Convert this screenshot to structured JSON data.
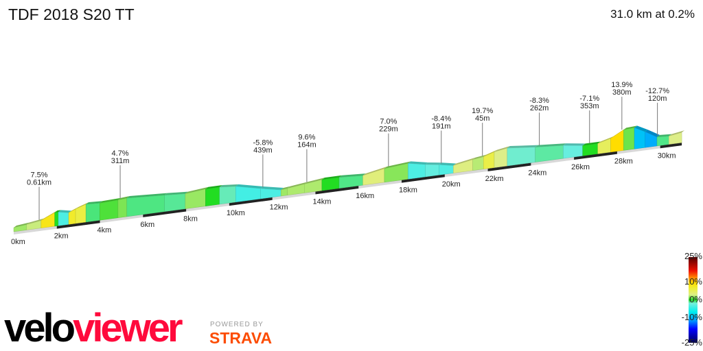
{
  "header": {
    "title": "TDF 2018 S20 TT",
    "summary": "31.0 km at 0.2%"
  },
  "chart_data": {
    "type": "area",
    "title": "TDF 2018 S20 TT",
    "xlabel": "",
    "ylabel": "",
    "x_unit": "km",
    "xlim": [
      0,
      31
    ],
    "x_ticks": [
      "0km",
      "2km",
      "4km",
      "6km",
      "8km",
      "10km",
      "12km",
      "14km",
      "16km",
      "18km",
      "20km",
      "22km",
      "24km",
      "26km",
      "28km",
      "30km"
    ],
    "profile": [
      [
        0,
        36
      ],
      [
        0.6,
        48
      ],
      [
        1.27,
        66
      ],
      [
        1.9,
        120
      ],
      [
        2.07,
        120
      ],
      [
        2.55,
        102
      ],
      [
        2.87,
        126
      ],
      [
        3.35,
        156
      ],
      [
        3.99,
        150
      ],
      [
        4.84,
        156
      ],
      [
        5.25,
        162
      ],
      [
        7,
        144
      ],
      [
        7.96,
        132
      ],
      [
        8.9,
        150
      ],
      [
        9.55,
        150
      ],
      [
        10.3,
        138
      ],
      [
        11.45,
        90
      ],
      [
        12.4,
        54
      ],
      [
        12.7,
        60
      ],
      [
        13.5,
        78
      ],
      [
        14.3,
        96
      ],
      [
        15.1,
        96
      ],
      [
        16.2,
        84
      ],
      [
        17.2,
        120
      ],
      [
        18.3,
        138
      ],
      [
        19.1,
        108
      ],
      [
        19.74,
        90
      ],
      [
        20.4,
        66
      ],
      [
        21.3,
        96
      ],
      [
        21.8,
        108
      ],
      [
        22.3,
        138
      ],
      [
        22.9,
        156
      ],
      [
        24.2,
        132
      ],
      [
        25.5,
        114
      ],
      [
        26.4,
        90
      ],
      [
        27.1,
        90
      ],
      [
        27.7,
        120
      ],
      [
        28.3,
        180
      ],
      [
        28.8,
        186
      ],
      [
        29.3,
        138
      ],
      [
        29.85,
        78
      ],
      [
        30.4,
        72
      ],
      [
        31,
        90
      ]
    ],
    "annotations": [
      {
        "km": 1.18,
        "grade": "7.5%",
        "length": "0.61km"
      },
      {
        "km": 4.94,
        "grade": "4.7%",
        "length": "311m"
      },
      {
        "km": 11.56,
        "grade": "-5.8%",
        "length": "439m"
      },
      {
        "km": 13.6,
        "grade": "9.6%",
        "length": "164m"
      },
      {
        "km": 17.39,
        "grade": "7.0%",
        "length": "229m"
      },
      {
        "km": 19.84,
        "grade": "-8.4%",
        "length": "191m"
      },
      {
        "km": 21.75,
        "grade": "19.7%",
        "length": "45m"
      },
      {
        "km": 24.39,
        "grade": "-8.3%",
        "length": "262m"
      },
      {
        "km": 26.72,
        "grade": "-7.1%",
        "length": "353m"
      },
      {
        "km": 28.22,
        "grade": "13.9%",
        "length": "380m"
      },
      {
        "km": 29.87,
        "grade": "-12.7%",
        "length": "120m"
      }
    ],
    "legend": {
      "labels": [
        "25%",
        "10%",
        "0%",
        "-10%",
        "-25%"
      ],
      "values": [
        25,
        10,
        0,
        -10,
        -25
      ],
      "colorscale": [
        [
          -25,
          "#00005a"
        ],
        [
          -17,
          "#0000ff"
        ],
        [
          -12,
          "#0099ff"
        ],
        [
          -7,
          "#00eeee"
        ],
        [
          -2,
          "#77eedd"
        ],
        [
          0,
          "#22dd22"
        ],
        [
          3,
          "#ddee88"
        ],
        [
          7,
          "#eeee33"
        ],
        [
          10,
          "#ffdd00"
        ],
        [
          13,
          "#ff8800"
        ],
        [
          17,
          "#ee1100"
        ],
        [
          25,
          "#550000"
        ]
      ]
    }
  },
  "branding": {
    "logo_velo": "velo",
    "logo_viewer": "viewer",
    "powered_by": "POWERED BY",
    "strava": "STRAVA"
  }
}
